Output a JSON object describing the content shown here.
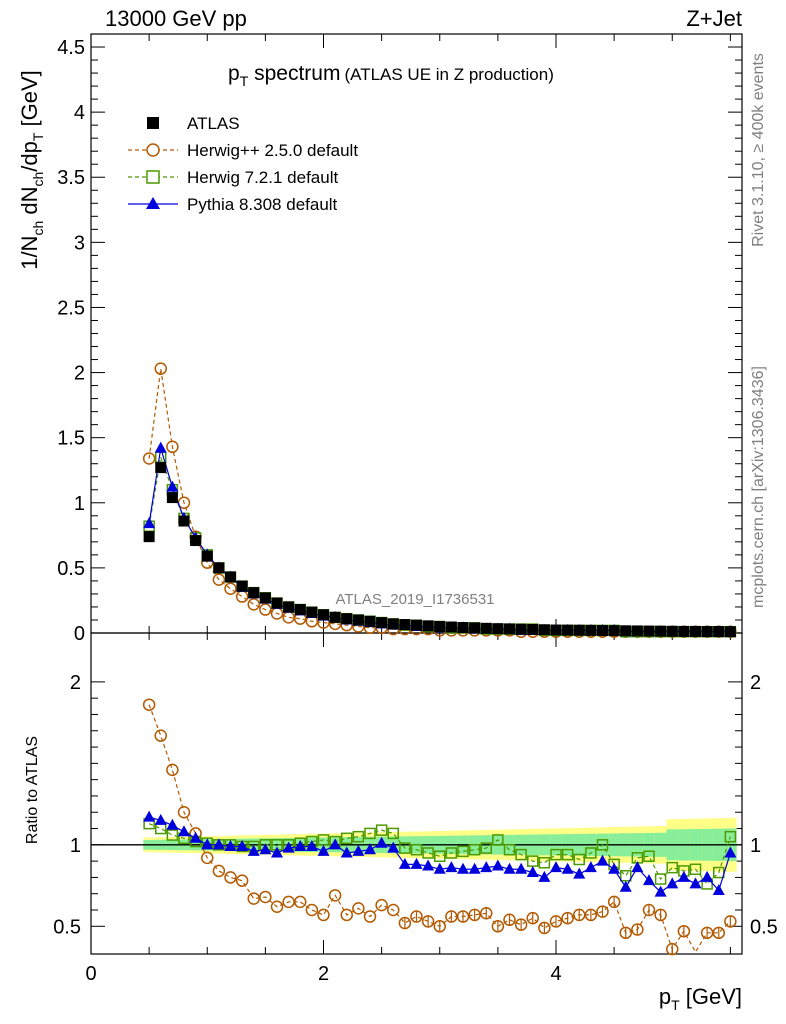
{
  "header": {
    "energy": "13000 GeV pp",
    "process": "Z+Jet",
    "title_main": "p",
    "title_sub": "T",
    "title_rest": " spectrum",
    "title_paren": "(ATLAS UE in Z production)",
    "watermark": "ATLAS_2019_I1736531",
    "side_rivet": "Rivet 3.1.10, ≥ 400k events",
    "side_mcplots": "mcplots.cern.ch [arXiv:1306.3436]"
  },
  "axes": {
    "ylabel_main": "1/N",
    "ylabel_ch1": "ch",
    "ylabel_mid": " dN",
    "ylabel_ch2": "ch",
    "ylabel_dp": "/dp",
    "ylabel_T": "T",
    "ylabel_unit": " [GeV]",
    "ratio_ylabel": "Ratio to ATLAS",
    "xlabel_p": "p",
    "xlabel_T": "T",
    "xlabel_unit": " [GeV]",
    "main_ticks": [
      "0",
      "0.5",
      "1",
      "1.5",
      "2",
      "2.5",
      "3",
      "3.5",
      "4",
      "4.5"
    ],
    "ratio_ticks": [
      "0.5",
      "1",
      "2"
    ],
    "x_ticks": [
      "0",
      "2",
      "4"
    ]
  },
  "legend": [
    {
      "label": "ATLAS",
      "color": "#000000",
      "marker": "square-filled"
    },
    {
      "label": "Herwig++ 2.5.0 default",
      "color": "#b35900",
      "marker": "circle-open"
    },
    {
      "label": "Herwig 7.2.1 default",
      "color": "#4c9900",
      "marker": "square-open"
    },
    {
      "label": "Pythia 8.308 default",
      "color": "#0000dd",
      "marker": "triangle-filled"
    }
  ],
  "chart_data": {
    "type": "scatter",
    "title": "pT spectrum (ATLAS UE in Z production)",
    "xlabel": "pT [GeV]",
    "ylabel": "1/Nch dNch/dpT [GeV]",
    "xlim": [
      0,
      5.6
    ],
    "ylim": [
      0,
      4.6
    ],
    "ratio_ylim": [
      0.33,
      2.3
    ],
    "x": [
      0.5,
      0.6,
      0.7,
      0.8,
      0.9,
      1.0,
      1.1,
      1.2,
      1.3,
      1.4,
      1.5,
      1.6,
      1.7,
      1.8,
      1.9,
      2.0,
      2.1,
      2.2,
      2.3,
      2.4,
      2.5,
      2.6,
      2.7,
      2.8,
      2.9,
      3.0,
      3.1,
      3.2,
      3.3,
      3.4,
      3.5,
      3.6,
      3.7,
      3.8,
      3.9,
      4.0,
      4.1,
      4.2,
      4.3,
      4.4,
      4.5,
      4.6,
      4.7,
      4.8,
      4.9,
      5.0,
      5.1,
      5.2,
      5.3,
      5.4,
      5.5
    ],
    "series": [
      {
        "name": "ATLAS",
        "values": [
          0.74,
          1.27,
          1.04,
          0.86,
          0.71,
          0.59,
          0.5,
          0.43,
          0.36,
          0.31,
          0.27,
          0.23,
          0.2,
          0.18,
          0.16,
          0.14,
          0.12,
          0.11,
          0.1,
          0.09,
          0.08,
          0.07,
          0.065,
          0.06,
          0.055,
          0.05,
          0.046,
          0.042,
          0.039,
          0.036,
          0.033,
          0.031,
          0.029,
          0.027,
          0.025,
          0.023,
          0.022,
          0.021,
          0.02,
          0.019,
          0.018,
          0.017,
          0.016,
          0.015,
          0.014,
          0.013,
          0.012,
          0.012,
          0.011,
          0.011,
          0.01
        ]
      },
      {
        "name": "Herwig++ 2.5.0 default",
        "values": [
          1.34,
          2.03,
          1.43,
          1.0,
          0.74,
          0.54,
          0.41,
          0.34,
          0.28,
          0.22,
          0.18,
          0.15,
          0.12,
          0.11,
          0.09,
          0.08,
          0.07,
          0.06,
          0.05,
          0.04,
          0.04,
          0.03,
          0.03,
          0.03,
          0.03,
          0.02,
          0.02,
          0.02,
          0.02,
          0.02,
          0.02,
          0.02,
          0.01,
          0.01,
          0.01,
          0.01,
          0.01,
          0.01,
          0.01,
          0.01,
          0.01,
          0.01,
          0.01,
          0.01,
          0.01,
          0.01,
          0.01,
          0.01,
          0.01,
          0.01,
          0.01
        ],
        "ratio": [
          1.86,
          1.67,
          1.46,
          1.2,
          1.07,
          0.92,
          0.84,
          0.8,
          0.78,
          0.67,
          0.68,
          0.62,
          0.65,
          0.65,
          0.6,
          0.57,
          0.69,
          0.57,
          0.61,
          0.56,
          0.63,
          0.6,
          0.52,
          0.56,
          0.53,
          0.5,
          0.56,
          0.56,
          0.57,
          0.58,
          0.5,
          0.54,
          0.51,
          0.55,
          0.49,
          0.53,
          0.55,
          0.57,
          0.57,
          0.59,
          0.65,
          0.46,
          0.48,
          0.6,
          0.57,
          0.36,
          0.47,
          0.26,
          0.46,
          0.46,
          0.53
        ]
      },
      {
        "name": "Herwig 7.2.1 default",
        "values": [
          0.82,
          1.35,
          1.1,
          0.88,
          0.73,
          0.6,
          0.5,
          0.43,
          0.36,
          0.31,
          0.27,
          0.23,
          0.2,
          0.18,
          0.16,
          0.14,
          0.12,
          0.11,
          0.1,
          0.09,
          0.08,
          0.07,
          0.06,
          0.06,
          0.05,
          0.05,
          0.04,
          0.04,
          0.04,
          0.03,
          0.03,
          0.03,
          0.03,
          0.03,
          0.02,
          0.02,
          0.02,
          0.02,
          0.02,
          0.02,
          0.02,
          0.01,
          0.01,
          0.01,
          0.01,
          0.01,
          0.01,
          0.01,
          0.01,
          0.01,
          0.01
        ],
        "ratio": [
          1.13,
          1.1,
          1.06,
          1.04,
          1.02,
          1.01,
          1.0,
          1.0,
          0.99,
          0.99,
          1.0,
          1.0,
          1.0,
          1.01,
          1.02,
          1.03,
          1.02,
          1.04,
          1.05,
          1.07,
          1.09,
          1.07,
          0.98,
          0.97,
          0.95,
          0.93,
          0.95,
          0.96,
          0.97,
          0.98,
          1.03,
          0.97,
          0.94,
          0.9,
          0.89,
          0.94,
          0.94,
          0.91,
          0.95,
          1.0,
          0.88,
          0.81,
          0.92,
          0.93,
          0.79,
          0.86,
          0.84,
          0.85,
          0.76,
          0.83,
          1.05
        ]
      },
      {
        "name": "Pythia 8.308 default",
        "values": [
          0.84,
          1.42,
          1.12,
          0.88,
          0.73,
          0.6,
          0.5,
          0.43,
          0.35,
          0.3,
          0.26,
          0.22,
          0.19,
          0.17,
          0.15,
          0.13,
          0.12,
          0.1,
          0.09,
          0.08,
          0.07,
          0.06,
          0.06,
          0.05,
          0.05,
          0.04,
          0.04,
          0.04,
          0.03,
          0.03,
          0.03,
          0.03,
          0.02,
          0.02,
          0.02,
          0.02,
          0.02,
          0.02,
          0.02,
          0.02,
          0.02,
          0.01,
          0.01,
          0.01,
          0.01,
          0.01,
          0.01,
          0.01,
          0.01,
          0.01,
          0.01
        ],
        "ratio": [
          1.17,
          1.15,
          1.12,
          1.08,
          1.04,
          1.0,
          1.0,
          0.99,
          0.99,
          0.96,
          0.97,
          0.95,
          0.98,
          0.99,
          0.99,
          0.96,
          1.0,
          0.95,
          0.96,
          0.97,
          1.01,
          0.98,
          0.88,
          0.88,
          0.87,
          0.85,
          0.86,
          0.85,
          0.85,
          0.86,
          0.87,
          0.85,
          0.85,
          0.83,
          0.8,
          0.86,
          0.85,
          0.82,
          0.86,
          0.9,
          0.85,
          0.74,
          0.86,
          0.78,
          0.71,
          0.76,
          0.8,
          0.76,
          0.8,
          0.72,
          0.95
        ]
      }
    ]
  }
}
